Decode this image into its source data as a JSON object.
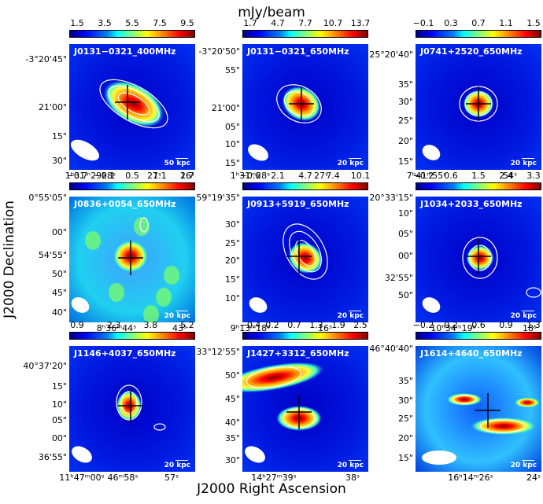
{
  "figure": {
    "unit": "mJy/beam",
    "xaxis_label": "J2000 Right Ascension",
    "yaxis_label": "J2000 Declination"
  },
  "panels": [
    {
      "title": "J0131−0321_400MHz",
      "scale": "50 kpc",
      "colorbar_ticks": [
        "1.5",
        "3.5",
        "5.5",
        "7.5",
        "9.5"
      ],
      "dec_ticks": [
        "-3°20'45\"",
        "21'00\"",
        "15\"",
        "30\""
      ],
      "ra_ticks": [
        "1ʰ31ᵐ29ˢ",
        "28ˢ",
        "27ˢ",
        "26ˢ"
      ]
    },
    {
      "title": "J0131−0321_650MHz",
      "scale": "20 kpc",
      "colorbar_ticks": [
        "1.7",
        "4.7",
        "7.7",
        "10.7",
        "13.7"
      ],
      "dec_ticks": [
        "-3°20'50\"",
        "55\"",
        "21'00\"",
        "05\"",
        "10\"",
        "15\""
      ],
      "ra_ticks": [
        "1ʰ31ᵐ28ˢ",
        "27ˢ"
      ]
    },
    {
      "title": "J0741+2520_650MHz",
      "scale": "20 kpc",
      "colorbar_ticks": [
        "−0.1",
        "0.3",
        "0.7",
        "1.1",
        "1.5"
      ],
      "dec_ticks": [
        "25°20'40\"",
        "35\"",
        "30\"",
        "25\"",
        "20\"",
        "15\""
      ],
      "ra_ticks": [
        "7ʰ41ᵐ55ˢ",
        "54ˢ"
      ]
    },
    {
      "title": "J0836+0054_650MHz",
      "scale": "20 kpc",
      "colorbar_ticks": [
        "−0.7",
        "−0.1",
        "0.5",
        "1.1",
        "1.7"
      ],
      "dec_ticks": [
        "0°55'05\"",
        "00\"",
        "54'55\"",
        "50\"",
        "45\"",
        "40\""
      ],
      "ra_ticks": [
        "8ʰ36ᵐ44ˢ",
        "43ˢ"
      ]
    },
    {
      "title": "J0913+5919_650MHz",
      "scale": "20 kpc",
      "colorbar_ticks": [
        "−0.6",
        "2.1",
        "4.7",
        "7.4",
        "10.1"
      ],
      "dec_ticks": [
        "59°19'35\"",
        "30\"",
        "25\"",
        "20\"",
        "15\"",
        "10\""
      ],
      "ra_ticks": [
        "9ʰ13ᵐ18ˢ",
        "16ˢ"
      ]
    },
    {
      "title": "J1034+2033_650MHz",
      "scale": "20 kpc",
      "colorbar_ticks": [
        "−0.2",
        "0.6",
        "1.5",
        "2.4",
        "3.3"
      ],
      "dec_ticks": [
        "20°33'15\"",
        "10\"",
        "05\"",
        "00\"",
        "32'55\"",
        "50\""
      ],
      "ra_ticks": [
        "10ʰ34ᵐ19ˢ",
        "18ˢ"
      ]
    },
    {
      "title": "J1146+4037_650MHz",
      "scale": "20 kpc",
      "colorbar_ticks": [
        "0.9",
        "2.3",
        "3.8",
        "5.2"
      ],
      "dec_ticks": [
        "40°37'20\"",
        "15\"",
        "10\"",
        "05\"",
        "00\"",
        "36'55\""
      ],
      "ra_ticks": [
        "11ʰ47ᵐ00ˢ",
        "46ᵐ58ˢ",
        "57ˢ"
      ]
    },
    {
      "title": "J1427+3312_650MHz",
      "scale": "20 kpc",
      "colorbar_ticks": [
        "−0.4",
        "0.2",
        "0.7",
        "1.3",
        "1.9",
        "2.5"
      ],
      "dec_ticks": [
        "33°12'55\"",
        "50\"",
        "45\"",
        "40\"",
        "35\"",
        "30\""
      ],
      "ra_ticks": [
        "14ʰ27ᵐ39ˢ",
        "38ˢ"
      ]
    },
    {
      "title": "J1614+4640_650MHz",
      "scale": "20 kpc",
      "colorbar_ticks": [
        "−0.2",
        "0.2",
        "0.6",
        "0.9",
        "1.3"
      ],
      "dec_ticks": [
        "46°40'40\"",
        "35\"",
        "30\"",
        "25\"",
        "20\"",
        "15\""
      ],
      "ra_ticks": [
        "16ʰ14ᵐ26ˢ",
        "24ˢ"
      ]
    }
  ]
}
